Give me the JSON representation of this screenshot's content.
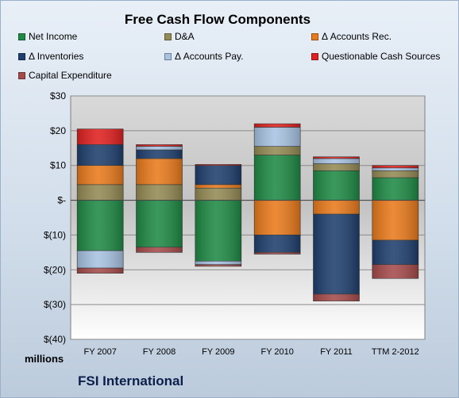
{
  "chart_data": {
    "type": "bar",
    "stacked": true,
    "title": "Free Cash Flow Components",
    "ylabel": "millions",
    "ylim": [
      -40,
      30
    ],
    "yticks": [
      30,
      20,
      10,
      0,
      -10,
      -20,
      -30,
      -40
    ],
    "ytick_labels": [
      "$30",
      "$20",
      "$10",
      "$-",
      "$(10)",
      "$(20)",
      "$(30)",
      "$(40)"
    ],
    "grid": true,
    "legend_position": "top",
    "categories": [
      "FY 2007",
      "FY 2008",
      "FY 2009",
      "FY 2010",
      "FY 2011",
      "TTM 2-2012"
    ],
    "series": [
      {
        "name": "Net Income",
        "color": "#1f8a45",
        "values": [
          -14.5,
          -13.5,
          -17.5,
          13,
          8.5,
          6.5
        ]
      },
      {
        "name": "D&A",
        "color": "#948a54",
        "values": [
          4.5,
          4.5,
          3.5,
          2.5,
          2,
          2
        ]
      },
      {
        "name": "Δ Accounts Rec.",
        "color": "#e97a1c",
        "values": [
          5.5,
          7.5,
          1,
          -10,
          -4,
          -11.5
        ]
      },
      {
        "name": "Δ Inventories",
        "color": "#1f3f6e",
        "values": [
          6,
          2.5,
          5.5,
          -5,
          -23,
          -7
        ]
      },
      {
        "name": "Δ Accounts Pay.",
        "color": "#a8c3e2",
        "values": [
          -5,
          1,
          -1,
          5.5,
          1.5,
          0.8
        ]
      },
      {
        "name": "Questionable Cash Sources",
        "color": "#e02020",
        "values": [
          4.5,
          0.5,
          0.3,
          1,
          0.5,
          0.7
        ]
      },
      {
        "name": "Capital Expenditure",
        "color": "#a54a4a",
        "values": [
          -1.5,
          -1.5,
          -0.5,
          -0.5,
          -2,
          -4
        ]
      }
    ]
  },
  "footer": {
    "company": "FSI International"
  }
}
